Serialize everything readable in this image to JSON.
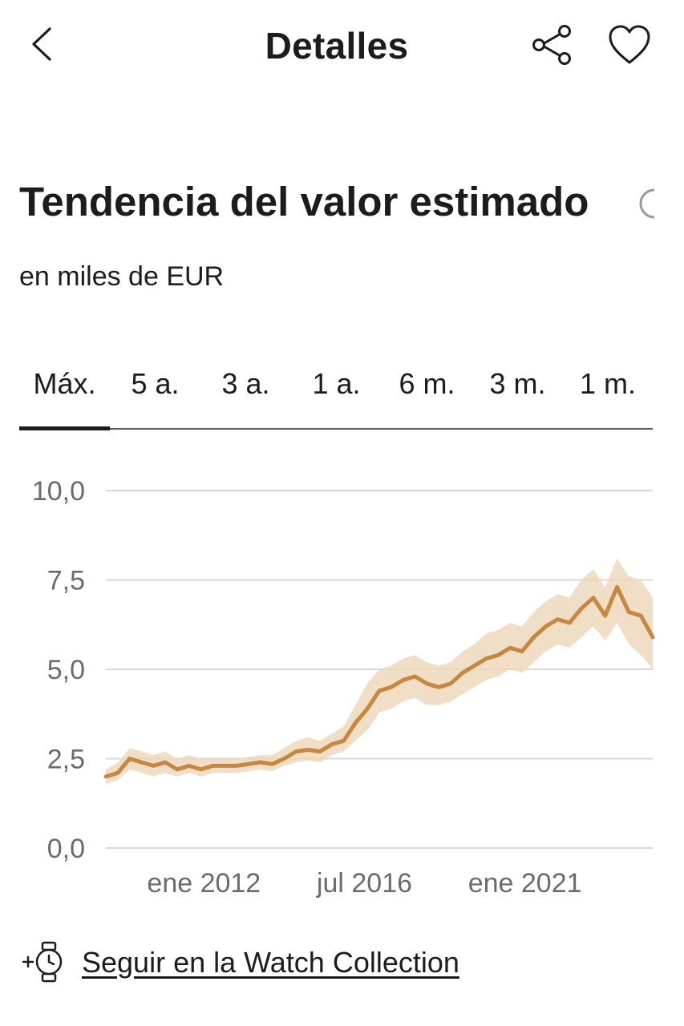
{
  "header": {
    "title": "Detalles"
  },
  "section": {
    "title": "Tendencia del valor estimado",
    "subtitle": "en miles de EUR"
  },
  "range_tabs": [
    {
      "label": "Máx.",
      "active": true
    },
    {
      "label": "5 a.",
      "active": false
    },
    {
      "label": "3 a.",
      "active": false
    },
    {
      "label": "1 a.",
      "active": false
    },
    {
      "label": "6 m.",
      "active": false
    },
    {
      "label": "3 m.",
      "active": false
    },
    {
      "label": "1 m.",
      "active": false
    }
  ],
  "chart_data": {
    "type": "area",
    "title": "",
    "xlabel": "",
    "ylabel": "",
    "ylim": [
      0,
      10
    ],
    "xlim": [
      "2009-04",
      "2024-08"
    ],
    "y_ticks": [
      "0,0",
      "2,5",
      "5,0",
      "7,5",
      "10,0"
    ],
    "y_tick_values": [
      0,
      2.5,
      5,
      7.5,
      10
    ],
    "x_ticks": [
      "ene 2012",
      "jul 2016",
      "ene 2021"
    ],
    "x_tick_values": [
      "2012-01",
      "2016-07",
      "2021-01"
    ],
    "grid": true,
    "colors": {
      "line": "#c8873f",
      "band": "#ecd6b8",
      "grid": "#d9d9d9",
      "tick_label": "#6b6b6b"
    },
    "series": [
      {
        "x": [
          "2009-04",
          "2009-08",
          "2009-12",
          "2010-04",
          "2010-08",
          "2010-12",
          "2011-04",
          "2011-08",
          "2011-12",
          "2012-04",
          "2012-08",
          "2012-12",
          "2013-04",
          "2013-08",
          "2013-12",
          "2014-04",
          "2014-08",
          "2014-12",
          "2015-04",
          "2015-08",
          "2015-12",
          "2016-04",
          "2016-08",
          "2016-12",
          "2017-04",
          "2017-08",
          "2017-12",
          "2018-04",
          "2018-08",
          "2018-12",
          "2019-04",
          "2019-08",
          "2019-12",
          "2020-04",
          "2020-08",
          "2020-12",
          "2021-04",
          "2021-08",
          "2021-12",
          "2022-04",
          "2022-08",
          "2022-12",
          "2023-04",
          "2023-08",
          "2023-12",
          "2024-04",
          "2024-08"
        ],
        "y": [
          2.0,
          2.1,
          2.5,
          2.4,
          2.3,
          2.4,
          2.2,
          2.3,
          2.2,
          2.3,
          2.3,
          2.3,
          2.35,
          2.4,
          2.35,
          2.5,
          2.7,
          2.75,
          2.7,
          2.9,
          3.0,
          3.5,
          3.9,
          4.4,
          4.5,
          4.7,
          4.8,
          4.6,
          4.5,
          4.6,
          4.9,
          5.1,
          5.3,
          5.4,
          5.6,
          5.5,
          5.9,
          6.2,
          6.4,
          6.3,
          6.7,
          7.0,
          6.5,
          7.3,
          6.6,
          6.5,
          5.9
        ],
        "low": [
          1.8,
          1.9,
          2.2,
          2.1,
          2.0,
          2.1,
          2.0,
          2.1,
          2.0,
          2.1,
          2.1,
          2.1,
          2.15,
          2.2,
          2.15,
          2.3,
          2.4,
          2.45,
          2.4,
          2.6,
          2.7,
          3.0,
          3.3,
          3.8,
          3.9,
          4.1,
          4.2,
          4.0,
          4.0,
          4.1,
          4.3,
          4.5,
          4.7,
          4.8,
          5.0,
          4.9,
          5.2,
          5.5,
          5.7,
          5.6,
          5.9,
          6.2,
          5.8,
          6.3,
          5.7,
          5.4,
          5.0
        ],
        "high": [
          2.2,
          2.4,
          2.8,
          2.7,
          2.6,
          2.7,
          2.5,
          2.6,
          2.5,
          2.5,
          2.5,
          2.5,
          2.55,
          2.6,
          2.6,
          2.8,
          3.0,
          3.1,
          3.0,
          3.2,
          3.4,
          4.0,
          4.6,
          5.0,
          5.1,
          5.3,
          5.4,
          5.2,
          5.1,
          5.2,
          5.5,
          5.7,
          6.0,
          6.1,
          6.3,
          6.2,
          6.6,
          6.9,
          7.1,
          7.0,
          7.5,
          7.8,
          7.3,
          8.1,
          7.6,
          7.5,
          7.0
        ]
      }
    ]
  },
  "footer": {
    "follow_label": "Seguir en la Watch Collection"
  }
}
